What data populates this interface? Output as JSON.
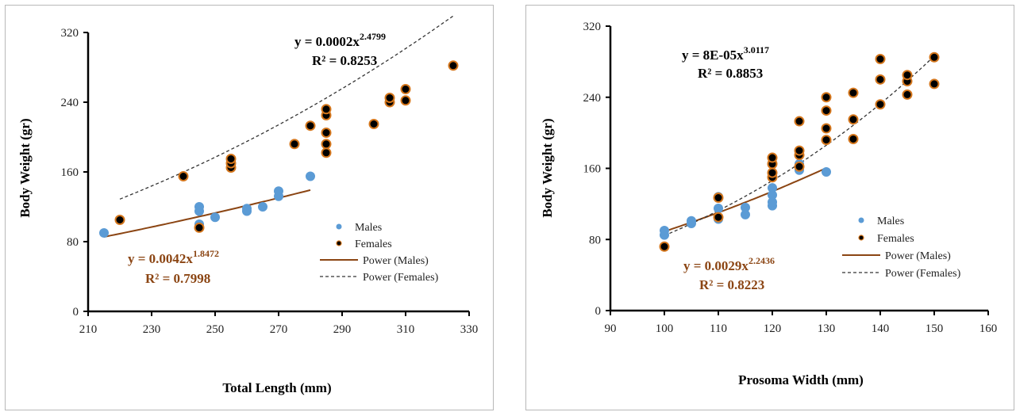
{
  "chart_data": [
    {
      "type": "scatter",
      "xlabel": "Total Length (mm)",
      "ylabel": "Body Weight (gr)",
      "xlim": [
        210,
        330
      ],
      "ylim": [
        0,
        320
      ],
      "xticks": [
        "210",
        "230",
        "250",
        "270",
        "290",
        "310",
        "330"
      ],
      "yticks": [
        "0",
        "80",
        "160",
        "240",
        "320"
      ],
      "legend": [
        "Males",
        "Females",
        "Power (Males)",
        "Power (Females)"
      ],
      "legend_position": "right",
      "series": [
        {
          "name": "Males",
          "color": "#5b9bd5",
          "points": [
            [
              215,
              90
            ],
            [
              245,
              100
            ],
            [
              245,
              115
            ],
            [
              245,
              120
            ],
            [
              250,
              108
            ],
            [
              260,
              115
            ],
            [
              260,
              118
            ],
            [
              265,
              120
            ],
            [
              270,
              132
            ],
            [
              270,
              138
            ],
            [
              280,
              155
            ]
          ]
        },
        {
          "name": "Females",
          "color": "#000000",
          "edge": "#d4761c",
          "points": [
            [
              220,
              105
            ],
            [
              240,
              155
            ],
            [
              245,
              96
            ],
            [
              255,
              165
            ],
            [
              255,
              170
            ],
            [
              255,
              175
            ],
            [
              275,
              192
            ],
            [
              280,
              213
            ],
            [
              285,
              182
            ],
            [
              285,
              192
            ],
            [
              285,
              205
            ],
            [
              285,
              225
            ],
            [
              285,
              232
            ],
            [
              300,
              215
            ],
            [
              305,
              240
            ],
            [
              305,
              245
            ],
            [
              310,
              242
            ],
            [
              310,
              255
            ],
            [
              325,
              282
            ]
          ]
        }
      ],
      "fits": [
        {
          "name": "Power (Males)",
          "a": 0.0042,
          "b": 1.8472,
          "x_range": [
            215,
            280
          ],
          "color": "#8B4513",
          "style": "solid"
        },
        {
          "name": "Power (Females)",
          "a": 0.0002,
          "b": 2.4799,
          "x_range": [
            220,
            325
          ],
          "color": "#333333",
          "style": "dashed"
        }
      ],
      "annotations": {
        "female_eq_main": "y = 0.0002x",
        "female_eq_exp": "2.4799",
        "female_r2": "R² = 0.8253",
        "male_eq_main": "y = 0.0042x",
        "male_eq_exp": "1.8472",
        "male_r2": "R² = 0.7998"
      }
    },
    {
      "type": "scatter",
      "xlabel": "Prosoma Width (mm)",
      "ylabel": "Body Weight (gr)",
      "xlim": [
        90,
        160
      ],
      "ylim": [
        0,
        320
      ],
      "xticks": [
        "90",
        "100",
        "110",
        "120",
        "130",
        "140",
        "150",
        "160"
      ],
      "yticks": [
        "0",
        "80",
        "160",
        "240",
        "320"
      ],
      "legend": [
        "Males",
        "Females",
        "Power (Males)",
        "Power (Females)"
      ],
      "legend_position": "right",
      "series": [
        {
          "name": "Males",
          "color": "#5b9bd5",
          "points": [
            [
              100,
              85
            ],
            [
              100,
              90
            ],
            [
              105,
              98
            ],
            [
              105,
              101
            ],
            [
              110,
              103
            ],
            [
              110,
              115
            ],
            [
              110,
              128
            ],
            [
              115,
              108
            ],
            [
              115,
              116
            ],
            [
              120,
              118
            ],
            [
              120,
              122
            ],
            [
              120,
              130
            ],
            [
              120,
              138
            ],
            [
              125,
              158
            ],
            [
              125,
              165
            ],
            [
              130,
              156
            ]
          ]
        },
        {
          "name": "Females",
          "color": "#000000",
          "edge": "#d4761c",
          "points": [
            [
              100,
              72
            ],
            [
              110,
              105
            ],
            [
              110,
              127
            ],
            [
              120,
              150
            ],
            [
              120,
              155
            ],
            [
              120,
              165
            ],
            [
              120,
              172
            ],
            [
              125,
              162
            ],
            [
              125,
              175
            ],
            [
              125,
              180
            ],
            [
              125,
              213
            ],
            [
              130,
              192
            ],
            [
              130,
              205
            ],
            [
              130,
              225
            ],
            [
              130,
              240
            ],
            [
              135,
              193
            ],
            [
              135,
              215
            ],
            [
              135,
              245
            ],
            [
              140,
              232
            ],
            [
              140,
              260
            ],
            [
              140,
              283
            ],
            [
              145,
              243
            ],
            [
              145,
              258
            ],
            [
              145,
              265
            ],
            [
              150,
              255
            ],
            [
              150,
              285
            ]
          ]
        }
      ],
      "fits": [
        {
          "name": "Power (Males)",
          "a": 0.0029,
          "b": 2.2436,
          "x_range": [
            100,
            130
          ],
          "color": "#8B4513",
          "style": "solid"
        },
        {
          "name": "Power (Females)",
          "a": 8e-05,
          "b": 3.0117,
          "x_range": [
            100,
            150
          ],
          "color": "#333333",
          "style": "dashed"
        }
      ],
      "annotations": {
        "female_eq_main": "y = 8E-05x",
        "female_eq_exp": "3.0117",
        "female_r2": "R² = 0.8853",
        "male_eq_main": "y = 0.0029x",
        "male_eq_exp": "2.2436",
        "male_r2": "R² = 0.8223"
      }
    }
  ]
}
